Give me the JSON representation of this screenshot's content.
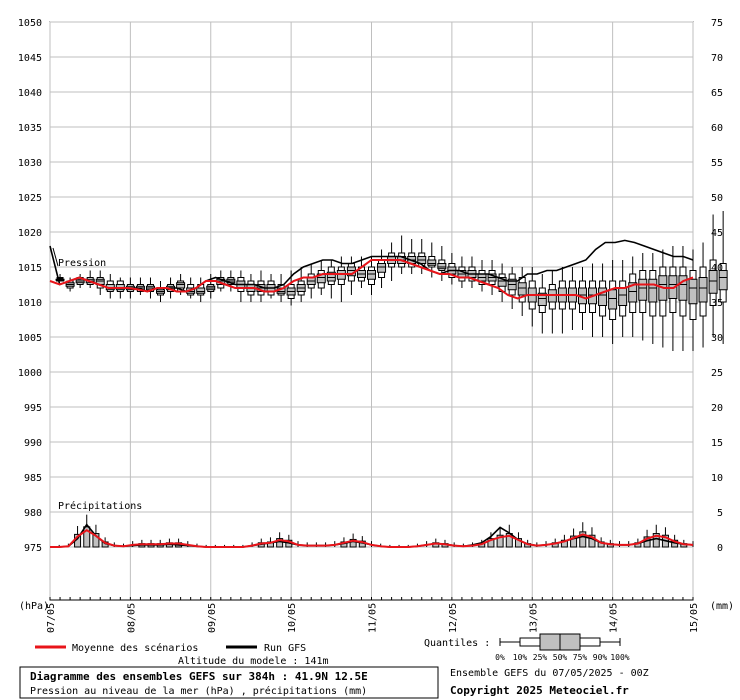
{
  "chart_data": {
    "type": "box",
    "left_axis_unit": "(hPa)",
    "right_axis_unit": "(mm)",
    "left_ticks": [
      1050,
      1045,
      1040,
      1035,
      1030,
      1025,
      1020,
      1015,
      1010,
      1005,
      1000,
      995,
      990,
      985,
      980,
      975
    ],
    "right_ticks": [
      75,
      70,
      65,
      60,
      55,
      50,
      45,
      40,
      35,
      30,
      25,
      20,
      15,
      10,
      5,
      0
    ],
    "left_ylim": [
      975,
      1050
    ],
    "right_ylim": [
      0,
      75
    ],
    "date_labels": [
      "07/05",
      "08/05",
      "09/05",
      "10/05",
      "11/05",
      "12/05",
      "13/05",
      "14/05",
      "15/05"
    ],
    "x_range_hours": [
      0,
      384
    ],
    "step_hours": 6,
    "annotations": {
      "pressure": "Pression",
      "precip": "Précipitations"
    },
    "pressure_mean": [
      1013,
      1012.5,
      1013,
      1013.5,
      1013,
      1012.5,
      1012,
      1012,
      1012,
      1011.8,
      1011.5,
      1012,
      1012,
      1011.5,
      1011.5,
      1012,
      1013,
      1013,
      1012.5,
      1012,
      1012,
      1012,
      1011.5,
      1011.5,
      1012,
      1013,
      1013.5,
      1013.5,
      1014,
      1014,
      1014,
      1014,
      1015,
      1016,
      1016,
      1016,
      1016,
      1015.5,
      1015,
      1014.5,
      1014,
      1014,
      1013.5,
      1013.5,
      1013,
      1012.5,
      1012,
      1011,
      1010.5,
      1011,
      1011,
      1011,
      1011,
      1011,
      1011,
      1010.5,
      1011,
      1011.5,
      1012,
      1012,
      1012.5,
      1012.5,
      1012.5,
      1012,
      1012,
      1013,
      1013.5
    ],
    "pressure_gfs": [
      1018,
      1012.5,
      1013,
      1013.5,
      1013,
      1012.5,
      1012,
      1012,
      1012,
      1012,
      1011.5,
      1012,
      1012,
      1012,
      1011.5,
      1012,
      1013,
      1013.5,
      1013,
      1012.5,
      1012.5,
      1012.5,
      1012,
      1012,
      1012.5,
      1014,
      1015,
      1015.5,
      1016,
      1016,
      1015.5,
      1015.5,
      1016,
      1016.5,
      1016.5,
      1016.5,
      1016.5,
      1016,
      1015.5,
      1014.5,
      1014,
      1014.5,
      1014.5,
      1014,
      1014,
      1014,
      1013.5,
      1013,
      1013,
      1014,
      1014,
      1014.5,
      1014.5,
      1015,
      1015.5,
      1016,
      1017.5,
      1018.5,
      1018.5,
      1018.8,
      1018.5,
      1018,
      1017.5,
      1017,
      1016.5,
      1016.5,
      1016
    ],
    "pressure_boxes": [
      [
        1013,
        1013.5,
        1013,
        1013.5,
        1014
      ],
      [
        1011.5,
        1012,
        1012.5,
        1013,
        1013.5
      ],
      [
        1012,
        1012.5,
        1013,
        1013.5,
        1014
      ],
      [
        1012,
        1012.5,
        1013,
        1013.5,
        1014.5
      ],
      [
        1011,
        1012,
        1013,
        1013.5,
        1014.5
      ],
      [
        1010.5,
        1011.5,
        1012,
        1013,
        1014
      ],
      [
        1010.5,
        1011.5,
        1012,
        1013,
        1013.5
      ],
      [
        1010.5,
        1011.5,
        1012,
        1012.5,
        1013.5
      ],
      [
        1011,
        1011.5,
        1012,
        1012.5,
        1013.5
      ],
      [
        1010.5,
        1011.5,
        1012,
        1012.5,
        1013.5
      ],
      [
        1010,
        1011,
        1011.5,
        1012,
        1013
      ],
      [
        1010.5,
        1011.5,
        1012,
        1012.5,
        1013.5
      ],
      [
        1011,
        1011.5,
        1012.5,
        1013,
        1014
      ],
      [
        1010.5,
        1011,
        1011.5,
        1012.5,
        1013.5
      ],
      [
        1010,
        1011,
        1011.5,
        1012.5,
        1013.5
      ],
      [
        1010.5,
        1011.5,
        1012,
        1012.5,
        1014
      ],
      [
        1011.5,
        1012,
        1013,
        1013.5,
        1014.5
      ],
      [
        1011.5,
        1012.5,
        1013,
        1013.5,
        1014.5
      ],
      [
        1010,
        1011.5,
        1012.5,
        1013.5,
        1014.5
      ],
      [
        1010,
        1011,
        1012,
        1013,
        1014
      ],
      [
        1010,
        1011,
        1012,
        1013,
        1014.5
      ],
      [
        1010.5,
        1011,
        1012,
        1013,
        1014
      ],
      [
        1010,
        1011,
        1011.5,
        1012.5,
        1014
      ],
      [
        1009.5,
        1010.5,
        1011.5,
        1012.5,
        1014.5
      ],
      [
        1010,
        1011,
        1012,
        1013,
        1015
      ],
      [
        1010.5,
        1012,
        1013,
        1014,
        1015.5
      ],
      [
        1011,
        1012,
        1013.5,
        1014.5,
        1016
      ],
      [
        1010.5,
        1012.5,
        1013.5,
        1015,
        1016
      ],
      [
        1010,
        1012.5,
        1014,
        1015,
        1016.5
      ],
      [
        1011,
        1013,
        1014.5,
        1015.5,
        1016.5
      ],
      [
        1012,
        1013,
        1014,
        1015,
        1016.5
      ],
      [
        1011,
        1012.5,
        1014,
        1015,
        1016.5
      ],
      [
        1012,
        1013.5,
        1015,
        1016,
        1017.5
      ],
      [
        1013,
        1015,
        1016,
        1017,
        1018.5
      ],
      [
        1014,
        1015,
        1016,
        1017,
        1019.5
      ],
      [
        1014,
        1015,
        1016,
        1017,
        1019
      ],
      [
        1014,
        1015,
        1016,
        1017,
        1019
      ],
      [
        1013.5,
        1015,
        1015.5,
        1016.5,
        1018.5
      ],
      [
        1013,
        1014.5,
        1015,
        1016,
        1018
      ],
      [
        1012.5,
        1013.5,
        1014.5,
        1015.5,
        1017
      ],
      [
        1012,
        1013,
        1014,
        1015,
        1016.5
      ],
      [
        1012,
        1013,
        1014,
        1015,
        1016.5
      ],
      [
        1011.5,
        1012.5,
        1013.5,
        1014.5,
        1016
      ],
      [
        1011,
        1012.5,
        1013.5,
        1014.5,
        1016
      ],
      [
        1010,
        1011.5,
        1013,
        1014,
        1015.5
      ],
      [
        1009,
        1011,
        1012.5,
        1014,
        1015
      ],
      [
        1008,
        1010,
        1012,
        1013.5,
        1015
      ],
      [
        1006.5,
        1009,
        1011,
        1013,
        1015
      ],
      [
        1005.5,
        1008.5,
        1010.5,
        1012,
        1014
      ],
      [
        1005.5,
        1009,
        1011,
        1012.5,
        1014.5
      ],
      [
        1005.5,
        1009,
        1011,
        1013,
        1015
      ],
      [
        1006,
        1009,
        1011,
        1013,
        1015
      ],
      [
        1006,
        1008.5,
        1011,
        1013,
        1015
      ],
      [
        1005,
        1008.5,
        1011,
        1013,
        1015.5
      ],
      [
        1005,
        1008,
        1011,
        1013,
        1015.5
      ],
      [
        1004,
        1007.5,
        1010.5,
        1013,
        1016
      ],
      [
        1005,
        1008,
        1011,
        1013,
        1016
      ],
      [
        1005,
        1008.5,
        1011.5,
        1014,
        1016.5
      ],
      [
        1004.5,
        1008.5,
        1012,
        1014.5,
        1017
      ],
      [
        1004,
        1008,
        1012,
        1014.5,
        1017
      ],
      [
        1003.5,
        1008,
        1012.5,
        1015,
        1017.5
      ],
      [
        1003,
        1008.5,
        1012.5,
        1015,
        1018
      ],
      [
        1003,
        1008,
        1012.5,
        1015,
        1018
      ],
      [
        1003,
        1007.5,
        1012,
        1014.5,
        1017.5
      ],
      [
        1003.5,
        1008,
        1012,
        1015,
        1018.5
      ],
      [
        1005,
        1009.5,
        1013,
        1016,
        1022.5
      ],
      [
        1004,
        1010,
        1013.5,
        1015.5,
        1023
      ]
    ],
    "precip_mean": [
      0,
      0,
      0.1,
      1.5,
      2.4,
      1.6,
      0.6,
      0.2,
      0.1,
      0.3,
      0.4,
      0.4,
      0.4,
      0.5,
      0.5,
      0.3,
      0.1,
      0,
      0,
      0,
      0,
      0,
      0.2,
      0.5,
      0.6,
      1.0,
      0.8,
      0.3,
      0.2,
      0.2,
      0.2,
      0.3,
      0.6,
      0.9,
      0.7,
      0.3,
      0.1,
      0,
      0,
      0,
      0.1,
      0.3,
      0.5,
      0.4,
      0.2,
      0.1,
      0.2,
      0.4,
      1.0,
      1.4,
      1.6,
      1.0,
      0.4,
      0.2,
      0.3,
      0.5,
      0.8,
      1.3,
      1.8,
      1.4,
      0.6,
      0.4,
      0.3,
      0.3,
      0.5,
      1.2,
      1.6,
      1.4,
      0.8,
      0.4,
      0.3
    ],
    "precip_gfs": [
      0,
      0,
      0.1,
      1.2,
      3.2,
      1.6,
      0.5,
      0.2,
      0.1,
      0.2,
      0.3,
      0.3,
      0.3,
      0.4,
      0.3,
      0.2,
      0.1,
      0,
      0,
      0,
      0,
      0,
      0.2,
      0.4,
      0.6,
      0.8,
      0.6,
      0.3,
      0.2,
      0.2,
      0.2,
      0.3,
      0.5,
      0.8,
      0.6,
      0.3,
      0.1,
      0,
      0,
      0,
      0.1,
      0.3,
      0.5,
      0.4,
      0.2,
      0.1,
      0.3,
      0.6,
      1.5,
      2.8,
      2.0,
      1.0,
      0.4,
      0.2,
      0.3,
      0.5,
      0.8,
      1.2,
      1.5,
      1.2,
      0.6,
      0.4,
      0.3,
      0.3,
      0.5,
      0.9,
      1.2,
      0.9,
      0.6,
      0.4,
      0.3
    ],
    "legend": {
      "mean": "Moyenne des scénarios",
      "gfs": "Run GFS",
      "quantiles_label": "Quantiles :",
      "quantiles_ticks": [
        "0%",
        "10%",
        "25%",
        "50%",
        "75%",
        "90%",
        "100%"
      ]
    },
    "colors": {
      "mean": "#e8141a",
      "gfs": "#000000",
      "box_fill": "#c0c0c0",
      "grid": "#bfbfbf"
    }
  },
  "footer": {
    "altitude": "Altitude du modele : 141m",
    "title": "Diagramme des ensembles GEFS sur 384h : 41.9N 12.5E",
    "subtitle": "Pression au niveau de la mer (hPa) , précipitations (mm)",
    "run": "Ensemble GEFS du 07/05/2025 - 00Z",
    "copyright": "Copyright 2025 Meteociel.fr"
  }
}
